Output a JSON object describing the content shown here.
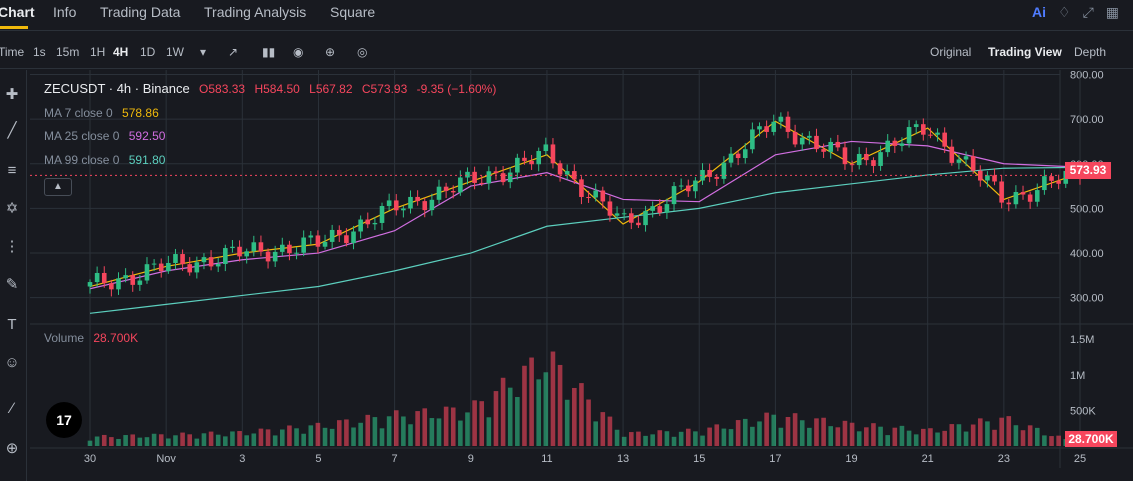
{
  "nav": {
    "tabs": [
      "Chart",
      "Info",
      "Trading Data",
      "Trading Analysis",
      "Square"
    ],
    "ai_label": "Ai"
  },
  "toolbar": {
    "time_label": "Time",
    "intervals": [
      "1s",
      "15m",
      "1H",
      "4H",
      "1D",
      "1W"
    ],
    "active_interval": "4H",
    "views": [
      "Original",
      "Trading View",
      "Depth"
    ],
    "active_view": "Trading View"
  },
  "legend": {
    "symbol": "ZECUSDT · 4h · Binance",
    "open": "O583.33",
    "high": "H584.50",
    "low": "L567.82",
    "close": "C573.93",
    "change": "-9.35 (−1.60%)",
    "ma7_label": "MA 7 close 0",
    "ma7_value": "578.86",
    "ma25_label": "MA 25 close 0",
    "ma25_value": "592.50",
    "ma99_label": "MA 99 close 0",
    "ma99_value": "591.80",
    "volume_label": "Volume",
    "volume_value": "28.700K"
  },
  "price_tag": "573.93",
  "volume_tag": "28.700K",
  "tv_logo": "17",
  "colors": {
    "up": "#2ebd85",
    "down": "#f6465d",
    "ma7": "#f0b90b",
    "ma25": "#d16ee0",
    "ma99": "#5ccfbe",
    "accent": "#f0b90b"
  },
  "chart_data": [
    {
      "type": "line",
      "title": "ZECUSDT · 4h · Binance",
      "price_ticks": [
        "800.00",
        "700.00",
        "600.00",
        "500.00",
        "400.00",
        "300.00"
      ],
      "ylim": [
        250,
        810
      ],
      "x_ticks": [
        "30",
        "Nov",
        "3",
        "5",
        "7",
        "9",
        "11",
        "13",
        "15",
        "17",
        "19",
        "21",
        "23",
        "25"
      ],
      "series": [
        {
          "name": "MA 7 close 0",
          "x": [
            "30",
            "Nov",
            "3",
            "5",
            "7",
            "9",
            "11",
            "13",
            "15",
            "17",
            "19",
            "21",
            "23",
            "25"
          ],
          "values": [
            325,
            370,
            400,
            420,
            500,
            560,
            620,
            465,
            560,
            695,
            600,
            680,
            520,
            578.86
          ]
        },
        {
          "name": "MA 25 close 0",
          "x": [
            "30",
            "Nov",
            "3",
            "5",
            "7",
            "9",
            "11",
            "13",
            "15",
            "17",
            "19",
            "21",
            "23",
            "25"
          ],
          "values": [
            320,
            360,
            385,
            400,
            450,
            550,
            580,
            520,
            515,
            620,
            650,
            640,
            600,
            592.5
          ]
        },
        {
          "name": "MA 99 close 0",
          "x": [
            "30",
            "Nov",
            "3",
            "5",
            "7",
            "9",
            "11",
            "13",
            "15",
            "17",
            "19",
            "21",
            "23",
            "25"
          ],
          "values": [
            265,
            285,
            305,
            325,
            360,
            400,
            460,
            480,
            500,
            535,
            555,
            575,
            590,
            591.8
          ]
        }
      ]
    },
    {
      "type": "bar",
      "title": "Volume",
      "volume_ticks": [
        "1.5M",
        "1M",
        "500K"
      ],
      "ylim": [
        0,
        1600000
      ],
      "x_ticks": [
        "30",
        "Nov",
        "3",
        "5",
        "7",
        "9",
        "11",
        "13",
        "15",
        "17",
        "19",
        "21",
        "23",
        "25"
      ],
      "values": [
        150000,
        180000,
        220000,
        330000,
        500000,
        600000,
        1450000,
        200000,
        250000,
        500000,
        350000,
        250000,
        450000,
        28700
      ]
    }
  ]
}
